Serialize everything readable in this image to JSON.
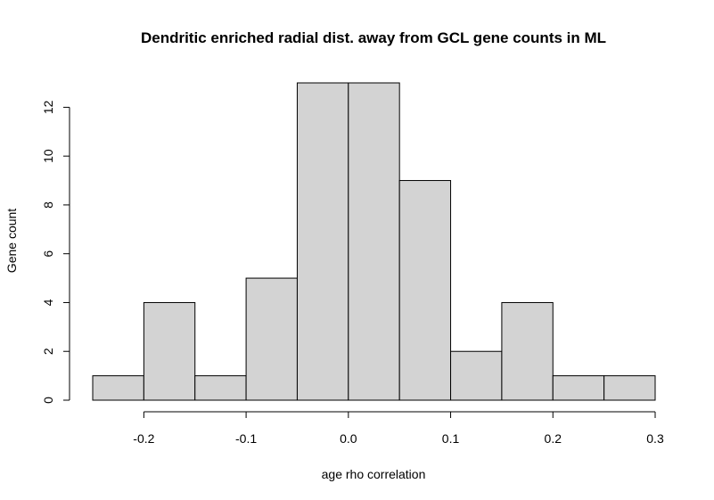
{
  "chart_data": {
    "type": "bar",
    "title": "Dendritic enriched radial dist. away from GCL gene counts in ML",
    "xlabel": "age rho correlation",
    "ylabel": "Gene count",
    "bin_edges": [
      -0.25,
      -0.2,
      -0.15,
      -0.1,
      -0.05,
      0.0,
      0.05,
      0.1,
      0.15,
      0.2,
      0.25,
      0.3
    ],
    "values": [
      1,
      4,
      1,
      5,
      13,
      13,
      9,
      2,
      4,
      1,
      1
    ],
    "xlim": [
      -0.25,
      0.3
    ],
    "ylim": [
      0,
      13
    ],
    "x_ticks": [
      -0.2,
      -0.1,
      0.0,
      0.1,
      0.2,
      0.3
    ],
    "x_tick_labels": [
      "-0.2",
      "-0.1",
      "0.0",
      "0.1",
      "0.2",
      "0.3"
    ],
    "y_ticks": [
      0,
      2,
      4,
      6,
      8,
      10,
      12
    ],
    "y_tick_labels": [
      "0",
      "2",
      "4",
      "6",
      "8",
      "10",
      "12"
    ],
    "grid": false,
    "colors": {
      "bar_fill": "#d3d3d3",
      "bar_stroke": "#000000",
      "background": "#ffffff"
    }
  }
}
